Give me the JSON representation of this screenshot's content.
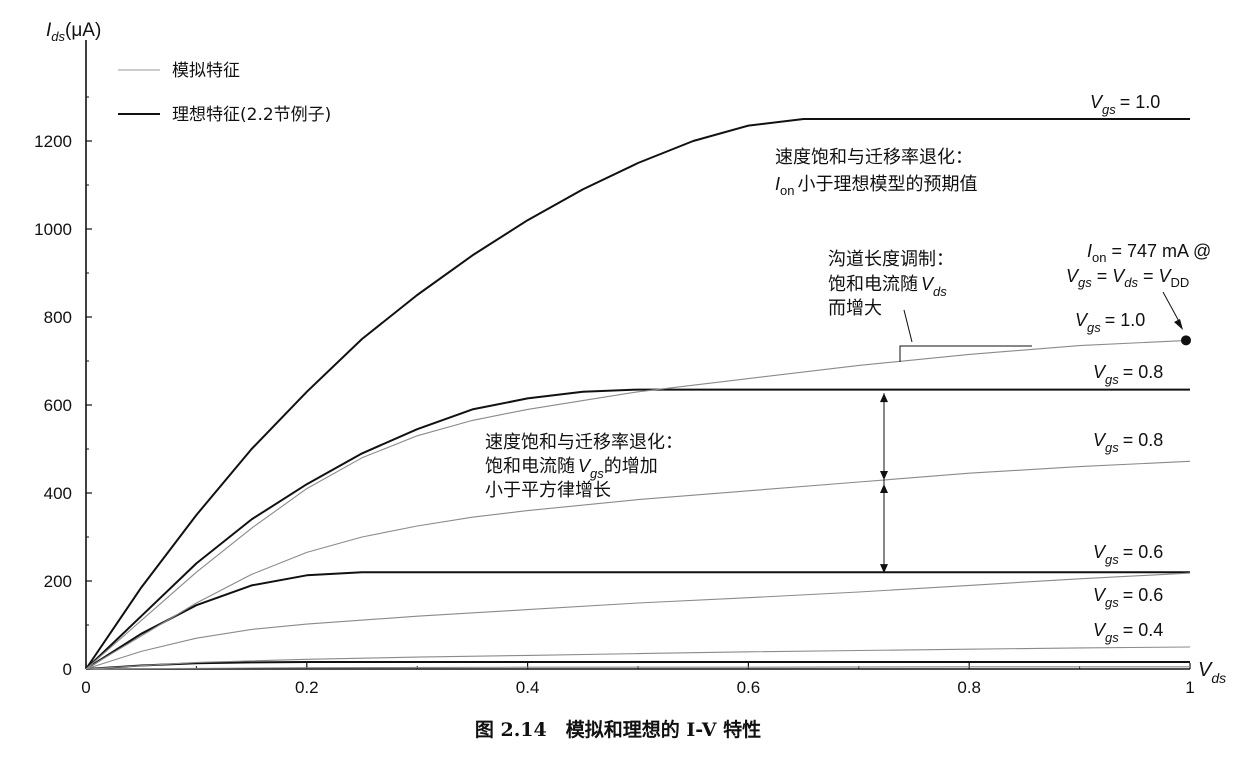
{
  "chart_data": {
    "type": "line",
    "caption": "图 2.14　模拟和理想的 I-V 特性",
    "xlabel": "V_ds",
    "ylabel": "I_ds(μA)",
    "xlim": [
      0,
      1
    ],
    "ylim": [
      0,
      1250
    ],
    "xticks": [
      "0",
      "0.2",
      "0.4",
      "0.6",
      "0.8",
      "1"
    ],
    "yticks": [
      "0",
      "200",
      "400",
      "600",
      "800",
      "1000",
      "1200"
    ],
    "legend": {
      "placement": "top-left",
      "entries": [
        {
          "label": "模拟特征",
          "style": "thin-gray"
        },
        {
          "label": "理想特征(2.2节例子)",
          "style": "thick-black"
        }
      ]
    },
    "series": [
      {
        "style": "thick-black",
        "label": "Vgs = 1.0",
        "x": [
          0,
          0.05,
          0.1,
          0.15,
          0.2,
          0.25,
          0.3,
          0.35,
          0.4,
          0.45,
          0.5,
          0.55,
          0.6,
          0.65,
          0.7,
          0.8,
          0.9,
          1.0
        ],
        "y": [
          0,
          185,
          350,
          500,
          630,
          750,
          850,
          940,
          1020,
          1090,
          1150,
          1200,
          1235,
          1250,
          1250,
          1250,
          1250,
          1250
        ]
      },
      {
        "style": "thick-black",
        "label": "Vgs = 0.8",
        "x": [
          0,
          0.05,
          0.1,
          0.15,
          0.2,
          0.25,
          0.3,
          0.35,
          0.4,
          0.45,
          0.5,
          0.6,
          0.7,
          0.8,
          0.9,
          1.0
        ],
        "y": [
          0,
          120,
          240,
          340,
          420,
          490,
          545,
          590,
          615,
          630,
          635,
          635,
          635,
          635,
          635,
          635
        ]
      },
      {
        "style": "thick-black",
        "label": "Vgs = 0.6",
        "x": [
          0,
          0.05,
          0.1,
          0.15,
          0.2,
          0.25,
          0.3,
          0.4,
          0.5,
          0.6,
          0.7,
          0.8,
          0.9,
          1.0
        ],
        "y": [
          0,
          80,
          145,
          190,
          213,
          220,
          220,
          220,
          220,
          220,
          220,
          220,
          220,
          220
        ]
      },
      {
        "style": "thick-black",
        "label": "",
        "x": [
          0,
          0.05,
          0.1,
          0.15,
          0.2,
          0.3,
          0.4,
          0.6,
          0.8,
          1.0
        ],
        "y": [
          0,
          8,
          13,
          15,
          16,
          16,
          16,
          16,
          16,
          16
        ]
      },
      {
        "style": "thin-gray",
        "label": "Vgs = 1.0",
        "x": [
          0,
          0.05,
          0.1,
          0.15,
          0.2,
          0.25,
          0.3,
          0.35,
          0.4,
          0.45,
          0.5,
          0.55,
          0.6,
          0.7,
          0.8,
          0.9,
          1.0
        ],
        "y": [
          0,
          110,
          220,
          320,
          410,
          480,
          530,
          565,
          590,
          610,
          630,
          645,
          660,
          690,
          715,
          735,
          747
        ]
      },
      {
        "style": "thin-gray",
        "label": "Vgs = 0.8",
        "x": [
          0,
          0.05,
          0.1,
          0.15,
          0.2,
          0.25,
          0.3,
          0.35,
          0.4,
          0.5,
          0.6,
          0.7,
          0.8,
          0.9,
          1.0
        ],
        "y": [
          0,
          75,
          150,
          215,
          265,
          300,
          325,
          345,
          360,
          385,
          405,
          425,
          445,
          460,
          472
        ]
      },
      {
        "style": "thin-gray",
        "label": "Vgs = 0.6",
        "x": [
          0,
          0.05,
          0.1,
          0.15,
          0.2,
          0.3,
          0.4,
          0.5,
          0.6,
          0.7,
          0.8,
          0.9,
          1.0
        ],
        "y": [
          0,
          40,
          70,
          90,
          102,
          120,
          135,
          150,
          162,
          175,
          190,
          205,
          218
        ]
      },
      {
        "style": "thin-gray",
        "label": "Vgs = 0.4",
        "x": [
          0,
          0.1,
          0.2,
          0.3,
          0.4,
          0.5,
          0.6,
          0.7,
          0.8,
          0.9,
          1.0
        ],
        "y": [
          0,
          15,
          22,
          27,
          31,
          35,
          39,
          42,
          45,
          48,
          50
        ]
      },
      {
        "style": "thin-gray",
        "label": "",
        "x": [
          0,
          0.2,
          0.4,
          0.6,
          0.8,
          1.0
        ],
        "y": [
          0,
          3,
          4,
          4,
          5,
          5
        ]
      }
    ],
    "annotations": {
      "vel_sat_top": [
        "速度饱和与迁移率退化：",
        "小于理想模型的预期值"
      ],
      "ion_sub": "on",
      "clm": [
        "沟道长度调制：",
        "饱和电流随",
        "而增大"
      ],
      "ion_point": {
        "x": 1.0,
        "y": 747,
        "label_rest": " = 747 mA @"
      },
      "vel_sat_mid": [
        "速度饱和与迁移率退化：",
        "饱和电流随",
        "的增加",
        "小于平方律增长"
      ]
    },
    "curve_labels": {
      "vgs_prefix": "V",
      "vgs_sub": "gs",
      "vds_sub": "ds",
      "vdd_sub": "DD",
      "values": [
        "= 1.0",
        "= 1.0",
        "= 0.8",
        "= 0.8",
        "= 0.6",
        "= 0.6",
        "= 0.4"
      ]
    }
  }
}
